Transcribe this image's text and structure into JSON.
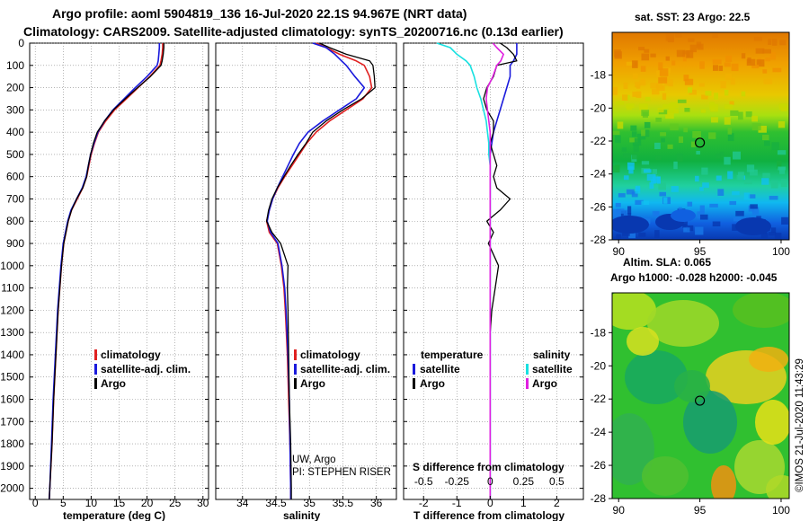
{
  "titles": {
    "line1": "Argo profile: aoml 5904819_136 16-Jul-2020 22.1S 94.967E (NRT data)",
    "line2": "Climatology: CARS2009. Satellite-adjusted climatology: synTS_20200716.nc (0.13d earlier)"
  },
  "colors": {
    "climatology": "#e02020",
    "satellite": "#1a1adc",
    "argo": "#000000",
    "sal_satellite": "#19e0e0",
    "sal_argo": "#e020e0"
  },
  "depth_axis": {
    "ylim": [
      2050,
      0
    ],
    "ticks": [
      0,
      100,
      200,
      300,
      400,
      500,
      600,
      700,
      800,
      900,
      1000,
      1100,
      1200,
      1300,
      1400,
      1500,
      1600,
      1700,
      1800,
      1900,
      2000
    ]
  },
  "chart_data": [
    {
      "type": "line",
      "title": "temperature panel",
      "xlabel": "temperature (deg C)",
      "xlim": [
        -1,
        31
      ],
      "xticks": [
        0,
        5,
        10,
        15,
        20,
        25,
        30
      ],
      "depth": [
        0,
        20,
        50,
        80,
        100,
        150,
        200,
        250,
        300,
        350,
        400,
        450,
        500,
        550,
        600,
        650,
        700,
        750,
        800,
        900,
        1000,
        1200,
        1400,
        1600,
        1800,
        2000,
        2050
      ],
      "series": [
        {
          "name": "climatology",
          "values": [
            22.8,
            22.8,
            22.7,
            22.5,
            22.3,
            20.5,
            18.4,
            16.3,
            14.2,
            12.6,
            11.3,
            10.6,
            10.0,
            9.6,
            9.2,
            8.5,
            7.5,
            6.5,
            5.9,
            5.1,
            4.7,
            4.1,
            3.7,
            3.3,
            3.0,
            2.6,
            2.5
          ]
        },
        {
          "name": "satellite-adj. clim.",
          "values": [
            22.2,
            22.2,
            22.1,
            22.0,
            21.8,
            20.0,
            17.9,
            15.9,
            13.9,
            12.4,
            11.2,
            10.5,
            9.9,
            9.5,
            9.1,
            8.4,
            7.4,
            6.4,
            5.8,
            5.0,
            4.6,
            4.0,
            3.6,
            3.2,
            2.9,
            2.6,
            2.5
          ]
        },
        {
          "name": "Argo",
          "values": [
            23.0,
            23.0,
            22.9,
            22.7,
            22.5,
            20.6,
            18.3,
            16.1,
            14.0,
            12.4,
            11.1,
            10.4,
            9.9,
            9.5,
            9.2,
            8.5,
            7.4,
            6.5,
            5.9,
            5.1,
            4.7,
            4.1,
            3.7,
            3.3,
            3.0,
            2.6,
            2.5
          ]
        }
      ],
      "legend": [
        "climatology",
        "satellite-adj. clim.",
        "Argo"
      ]
    },
    {
      "type": "line",
      "title": "salinity panel",
      "xlabel": "salinity",
      "xlim": [
        33.6,
        36.3
      ],
      "xticks": [
        34,
        34.5,
        35,
        35.5,
        36
      ],
      "depth": [
        0,
        20,
        50,
        80,
        100,
        150,
        200,
        250,
        300,
        350,
        400,
        450,
        500,
        550,
        600,
        650,
        700,
        750,
        800,
        850,
        900,
        1000,
        1100,
        1200,
        1400,
        1600,
        1800,
        2000,
        2050
      ],
      "series": [
        {
          "name": "climatology",
          "values": [
            35.1,
            35.25,
            35.45,
            35.7,
            35.82,
            35.9,
            35.93,
            35.8,
            35.55,
            35.3,
            35.1,
            34.96,
            34.85,
            34.74,
            34.63,
            34.53,
            34.45,
            34.4,
            34.36,
            34.4,
            34.52,
            34.58,
            34.62,
            34.64,
            34.67,
            34.69,
            34.71,
            34.72,
            34.72
          ]
        },
        {
          "name": "satellite-adj. clim.",
          "values": [
            35.05,
            35.25,
            35.38,
            35.48,
            35.55,
            35.68,
            35.82,
            35.7,
            35.45,
            35.2,
            34.98,
            34.85,
            34.76,
            34.68,
            34.6,
            34.52,
            34.45,
            34.4,
            34.37,
            34.42,
            34.53,
            34.59,
            34.63,
            34.65,
            34.68,
            34.7,
            34.71,
            34.72,
            34.72
          ]
        },
        {
          "name": "Argo",
          "values": [
            35.15,
            35.3,
            35.55,
            35.9,
            35.95,
            35.97,
            35.98,
            35.78,
            35.5,
            35.25,
            35.05,
            34.95,
            34.83,
            34.72,
            34.62,
            34.52,
            34.44,
            34.39,
            34.36,
            34.44,
            34.57,
            34.68,
            34.67,
            34.68,
            34.69,
            34.7,
            34.72,
            34.73,
            34.73
          ]
        }
      ],
      "legend": [
        "climatology",
        "satellite-adj. clim.",
        "Argo"
      ],
      "annotation": [
        "UW, Argo",
        "PI: STEPHEN RISER"
      ]
    },
    {
      "type": "line",
      "title": "difference panel",
      "xlabel": "T difference from climatology",
      "xlim": [
        -2.6,
        2.8
      ],
      "xticks": [
        -2,
        -1,
        0,
        1,
        2
      ],
      "top_xlabel": "S difference from climatology",
      "top_xticks_salinity": [
        -0.5,
        -0.25,
        0,
        0.25,
        0.5
      ],
      "salinity_scale": 4,
      "depth": [
        0,
        20,
        50,
        80,
        100,
        150,
        200,
        250,
        300,
        350,
        400,
        450,
        500,
        550,
        600,
        650,
        700,
        750,
        800,
        850,
        900,
        1000,
        1100,
        1200,
        1300,
        1400,
        1600,
        1800,
        2000,
        2050
      ],
      "series": [
        {
          "name": "temperature Argo",
          "values": [
            0.3,
            0.5,
            0.7,
            0.8,
            0.2,
            0.1,
            -0.1,
            -0.2,
            -0.1,
            0.1,
            0.1,
            0.0,
            0.1,
            0.2,
            0.1,
            0.2,
            0.6,
            0.3,
            -0.1,
            0.1,
            -0.05,
            0.25,
            0.15,
            0.05,
            0.0,
            0.0,
            0.0,
            0.0,
            0.0,
            0.0
          ]
        },
        {
          "name": "temperature satellite",
          "values": [
            0.8,
            0.8,
            0.8,
            0.7,
            0.6,
            0.6,
            0.5,
            0.4,
            0.3,
            0.2,
            0.1,
            0.05,
            0.0,
            0.0,
            0.0,
            0.0,
            0.0,
            0.0,
            0.0,
            0.0,
            0.0,
            0.0,
            0.0,
            0.0,
            0.0,
            0.0,
            0.0,
            0.0,
            0.0,
            0.0
          ]
        },
        {
          "name": "salinity satellite",
          "values": [
            -0.4,
            -0.3,
            -0.25,
            -0.18,
            -0.15,
            -0.12,
            -0.1,
            -0.07,
            -0.05,
            -0.03,
            -0.02,
            -0.01,
            -0.01,
            0.0,
            0.0,
            0.0,
            0.0,
            0.0,
            0.0,
            0.0,
            0.0,
            0.0,
            0.0,
            0.0,
            0.0,
            0.0,
            0.0,
            0.0,
            0.0,
            0.0
          ]
        },
        {
          "name": "salinity Argo",
          "values": [
            0.02,
            0.05,
            0.1,
            0.08,
            0.05,
            0.02,
            -0.02,
            -0.03,
            -0.02,
            -0.01,
            0.0,
            0.0,
            0.0,
            0.0,
            0.0,
            0.0,
            0.0,
            0.0,
            0.0,
            0.0,
            0.0,
            0.0,
            0.0,
            0.0,
            0.0,
            0.0,
            0.0,
            0.0,
            0.0,
            0.0
          ]
        }
      ],
      "legend_temperature": {
        "heading": "temperature",
        "items": [
          "satellite",
          "Argo"
        ]
      },
      "legend_salinity": {
        "heading": "salinity",
        "items": [
          "satellite",
          "Argo"
        ]
      }
    },
    {
      "type": "heatmap",
      "title": "sat. SST: 23 Argo: 22.5",
      "xlim": [
        89.6,
        100.5
      ],
      "ylim": [
        -28,
        -15.4
      ],
      "xticks": [
        90,
        95,
        100
      ],
      "yticks": [
        -18,
        -20,
        -22,
        -24,
        -26,
        -28
      ],
      "marker": {
        "lon": 95.0,
        "lat": -22.1
      }
    },
    {
      "type": "heatmap",
      "title": "Altim. SLA: 0.065",
      "subtitle": "Argo h1000: -0.028 h2000: -0.045",
      "xlim": [
        89.6,
        100.5
      ],
      "ylim": [
        -28,
        -15.6
      ],
      "xticks": [
        90,
        95,
        100
      ],
      "yticks": [
        -18,
        -20,
        -22,
        -24,
        -26,
        -28
      ],
      "marker": {
        "lon": 95.0,
        "lat": -22.1
      }
    }
  ],
  "credit": "©IMOS 21-Jul-2020 11:43:29"
}
